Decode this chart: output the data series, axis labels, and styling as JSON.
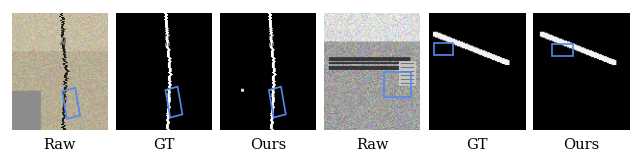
{
  "labels": [
    "Raw",
    "GT",
    "Ours",
    "Raw",
    "GT",
    "Ours"
  ],
  "fig_width": 6.4,
  "fig_height": 1.59,
  "background_color": "#ffffff",
  "label_fontsize": 10.5,
  "box_color": "#5588ee"
}
